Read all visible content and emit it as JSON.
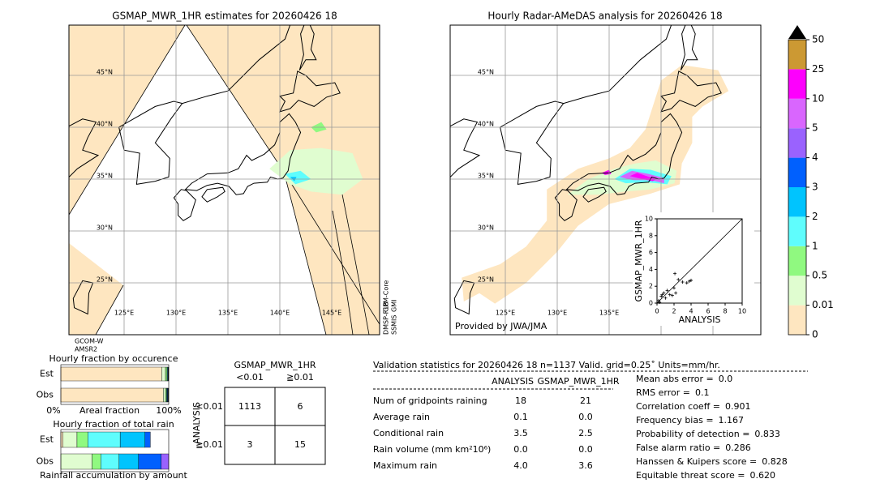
{
  "left_map": {
    "title": "GSMAP_MWR_1HR estimates for 20260426 18",
    "satellites": [
      "GCOM-W",
      "AMSR2"
    ],
    "side_labels": [
      "DMSP-F18",
      "SSMIS",
      "GPM-Core",
      "GMI"
    ]
  },
  "right_map": {
    "title": "Hourly Radar-AMeDAS analysis for 20260426 18",
    "credit": "Provided by JWA/JMA"
  },
  "lat_ticks": [
    {
      "value": 45,
      "label": "45°N"
    },
    {
      "value": 40,
      "label": "40°N"
    },
    {
      "value": 35,
      "label": "35°N"
    },
    {
      "value": 30,
      "label": "30°N"
    },
    {
      "value": 25,
      "label": "25°N"
    }
  ],
  "lon_ticks": [
    {
      "value": 125,
      "label": "125°E"
    },
    {
      "value": 130,
      "label": "130°E"
    },
    {
      "value": 135,
      "label": "135°E"
    },
    {
      "value": 140,
      "label": "140°E"
    },
    {
      "value": 145,
      "label": "145°E"
    }
  ],
  "colorbar": {
    "ticks": [
      0,
      0.01,
      0.5,
      1,
      2,
      3,
      4,
      5,
      10,
      25,
      50
    ],
    "colors": [
      "#fee6c0",
      "#e0fdd0",
      "#90f980",
      "#5ffdfd",
      "#00c4fe",
      "#0060fe",
      "#9a62fe",
      "#d966fe",
      "#fd00fd",
      "#cc9933"
    ],
    "over_color": "#000000"
  },
  "scatter": {
    "xlabel": "ANALYSIS",
    "ylabel": "GSMAP_MWR_1HR",
    "xlim": [
      0,
      10
    ],
    "ylim": [
      0,
      10
    ],
    "xticks": [
      0,
      2,
      4,
      6,
      8,
      10
    ],
    "yticks": [
      0,
      2,
      4,
      6,
      8,
      10
    ],
    "x": [
      0.2,
      0.3,
      0.5,
      0.6,
      0.8,
      1.0,
      1.2,
      1.5,
      1.8,
      2.0,
      2.1,
      2.2,
      2.5,
      3.0,
      3.5,
      3.8,
      4.0
    ],
    "y": [
      0.3,
      0.1,
      0.8,
      1.0,
      1.2,
      0.6,
      1.5,
      1.0,
      0.9,
      1.8,
      3.5,
      1.2,
      2.8,
      2.5,
      2.4,
      2.6,
      2.7
    ]
  },
  "fraction_occurrence": {
    "title": "Hourly fraction by occurence",
    "rows": [
      "Est",
      "Obs"
    ],
    "axis_labels": [
      "0%",
      "Areal fraction",
      "100%"
    ],
    "xlim": [
      0,
      100
    ],
    "series": [
      {
        "color": "#fee6c0",
        "values": [
          93.5,
          95
        ]
      },
      {
        "color": "#e0fdd0",
        "values": [
          3.5,
          2
        ]
      },
      {
        "color": "#90f980",
        "values": [
          1.5,
          1
        ]
      },
      {
        "color": "#5ffdfd",
        "values": [
          0.5,
          0.5
        ]
      },
      {
        "color": "#0060fe",
        "values": [
          0.5,
          0.5
        ]
      },
      {
        "color": "#222222",
        "values": [
          0.5,
          1
        ]
      }
    ]
  },
  "fraction_total": {
    "title": "Hourly fraction of total rain",
    "rows": [
      "Est",
      "Obs"
    ],
    "footer": "Rainfall accumulation by amount",
    "xlim": [
      0,
      100
    ],
    "series": [
      {
        "color": "#fee6c0",
        "values": [
          2,
          0
        ]
      },
      {
        "color": "#e0fdd0",
        "values": [
          13,
          29
        ]
      },
      {
        "color": "#90f980",
        "values": [
          10,
          8
        ]
      },
      {
        "color": "#5ffdfd",
        "values": [
          30,
          17
        ]
      },
      {
        "color": "#00c4fe",
        "values": [
          23,
          18
        ]
      },
      {
        "color": "#0060fe",
        "values": [
          5,
          21
        ]
      },
      {
        "color": "#9a62fe",
        "values": [
          0,
          7
        ]
      }
    ]
  },
  "contingency": {
    "title": "GSMAP_MWR_1HR",
    "col_headers": [
      "<0.01",
      "≧0.01"
    ],
    "row_title": "ANALYSIS",
    "row_headers": [
      "<0.01",
      "≧0.01"
    ],
    "cells": [
      [
        "1113",
        "6"
      ],
      [
        "3",
        "15"
      ]
    ]
  },
  "validation": {
    "header": "Validation statistics for 20260426 18  n=1137 Valid. grid=0.25˚ Units=mm/hr.",
    "columns": [
      "ANALYSIS",
      "GSMAP_MWR_1HR"
    ],
    "rows": [
      {
        "label": "Num of gridpoints raining",
        "values": [
          "18",
          "21"
        ]
      },
      {
        "label": "Average rain",
        "values": [
          "0.1",
          "0.0"
        ]
      },
      {
        "label": "Conditional rain",
        "values": [
          "3.5",
          "2.5"
        ]
      },
      {
        "label": "Rain volume (mm km²10⁶)",
        "values": [
          "0.0",
          "0.0"
        ]
      },
      {
        "label": "Maximum rain",
        "values": [
          "4.0",
          "3.6"
        ]
      }
    ],
    "scores": [
      [
        "Mean abs error =",
        "0.0"
      ],
      [
        "RMS error =",
        "0.1"
      ],
      [
        "Correlation coeff =",
        "0.901"
      ],
      [
        "Frequency bias =",
        "1.167"
      ],
      [
        "Probability of detection =",
        "0.833"
      ],
      [
        "False alarm ratio =",
        "0.286"
      ],
      [
        "Hanssen & Kuipers score =",
        "0.828"
      ],
      [
        "Equitable threat score =",
        "0.620"
      ]
    ]
  }
}
